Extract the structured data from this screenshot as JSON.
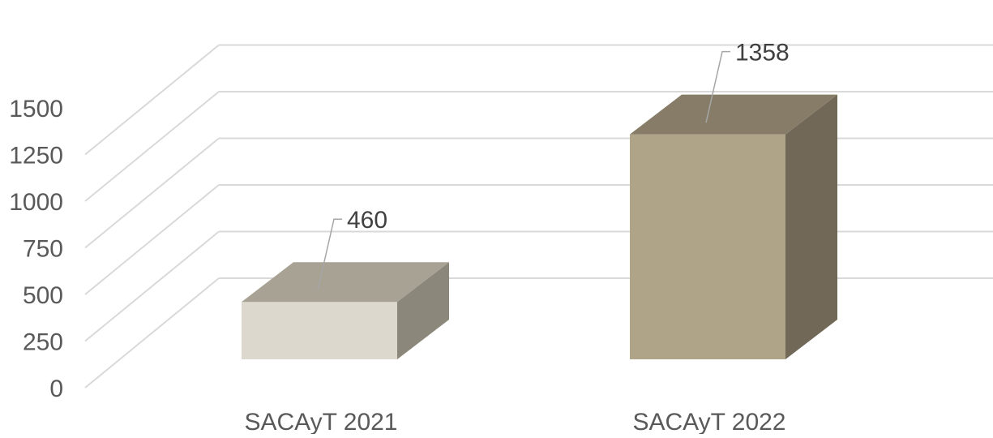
{
  "chart_data": {
    "type": "bar",
    "title": "",
    "xlabel": "",
    "ylabel": "",
    "categories": [
      "SACAyT 2021",
      "SACAyT 2022"
    ],
    "values": [
      460,
      1358
    ],
    "data_labels": [
      "460",
      "1358"
    ],
    "ylim": [
      0,
      2000
    ],
    "yticks": [
      0,
      250,
      500,
      750,
      1000,
      1250,
      1500
    ],
    "ytick_labels": [
      "0",
      "250",
      "500",
      "750",
      "1000",
      "1250",
      "1500"
    ],
    "grid": true,
    "legend": "none",
    "style": "3d-column",
    "colors": {
      "bar_front": [
        "#ddd8cd",
        "#b0a488"
      ],
      "bar_top": [
        "#a7a294",
        "#867c68"
      ],
      "bar_side": [
        "#8c877b",
        "#716858"
      ],
      "grid": "#d9d9d9",
      "tick_text": "#595959",
      "label_text": "#404040",
      "leader": "#a6a6a6"
    }
  }
}
